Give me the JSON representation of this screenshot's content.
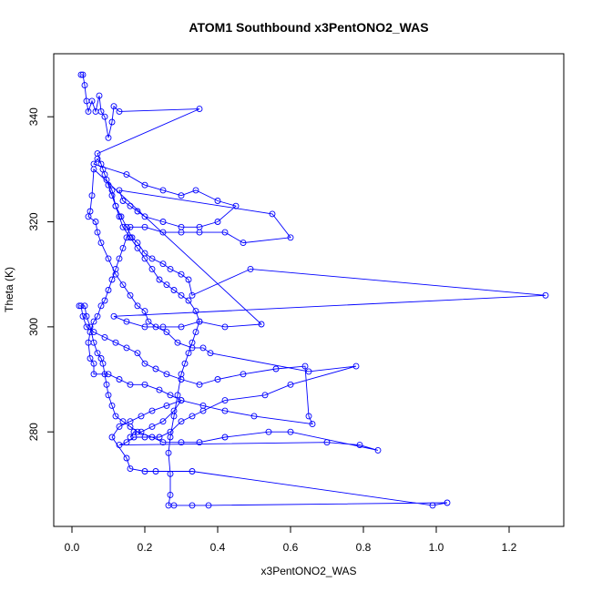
{
  "chart_data": {
    "type": "line",
    "title": "ATOM1 Southbound x3PentONO2_WAS",
    "xlabel": "x3PentONO2_WAS",
    "ylabel": "Theta (K)",
    "xlim": [
      -0.05,
      1.35
    ],
    "ylim": [
      262,
      352
    ],
    "x_ticks": [
      0.0,
      0.2,
      0.4,
      0.6,
      0.8,
      1.0,
      1.2
    ],
    "x_tick_labels": [
      "0.0",
      "0.2",
      "0.4",
      "0.6",
      "0.8",
      "1.0",
      "1.2"
    ],
    "y_ticks": [
      280,
      300,
      320,
      340
    ],
    "y_tick_labels": [
      "280",
      "300",
      "320",
      "340"
    ],
    "grid": false,
    "legend": "none",
    "marker": "open-circle",
    "series_color": "#0000ff",
    "series": [
      {
        "points": [
          [
            0.025,
            348
          ],
          [
            0.03,
            348
          ],
          [
            0.035,
            346
          ],
          [
            0.04,
            343
          ],
          [
            0.045,
            341
          ],
          [
            0.055,
            343
          ],
          [
            0.065,
            341
          ],
          [
            0.075,
            344
          ],
          [
            0.08,
            341
          ],
          [
            0.09,
            340
          ],
          [
            0.1,
            336
          ],
          [
            0.11,
            339
          ],
          [
            0.115,
            342
          ],
          [
            0.13,
            341
          ],
          [
            0.35,
            341.5
          ],
          [
            0.07,
            333
          ],
          [
            0.085,
            330
          ],
          [
            0.095,
            328
          ],
          [
            0.11,
            326
          ],
          [
            0.12,
            323
          ],
          [
            0.135,
            321
          ],
          [
            0.15,
            319
          ],
          [
            0.165,
            317
          ],
          [
            0.18,
            316
          ],
          [
            0.2,
            314
          ],
          [
            0.22,
            313
          ],
          [
            0.25,
            312
          ],
          [
            0.27,
            311
          ],
          [
            0.3,
            310
          ],
          [
            0.32,
            309
          ],
          [
            0.33,
            306
          ],
          [
            0.49,
            311
          ],
          [
            1.3,
            306
          ],
          [
            0.115,
            302
          ],
          [
            0.15,
            301
          ],
          [
            0.2,
            300
          ],
          [
            0.25,
            300
          ],
          [
            0.3,
            300
          ],
          [
            0.35,
            301
          ],
          [
            0.42,
            300
          ],
          [
            0.52,
            300.5
          ],
          [
            0.06,
            330
          ],
          [
            0.055,
            325
          ],
          [
            0.05,
            322
          ],
          [
            0.045,
            321
          ],
          [
            0.065,
            320
          ],
          [
            0.07,
            318
          ],
          [
            0.08,
            316
          ],
          [
            0.1,
            313
          ],
          [
            0.12,
            310
          ],
          [
            0.14,
            308
          ],
          [
            0.16,
            306
          ],
          [
            0.18,
            304
          ],
          [
            0.2,
            303
          ],
          [
            0.21,
            301
          ],
          [
            0.23,
            300
          ],
          [
            0.26,
            299
          ],
          [
            0.29,
            297
          ],
          [
            0.33,
            296
          ],
          [
            0.36,
            296
          ],
          [
            0.38,
            295
          ],
          [
            0.65,
            291.5
          ],
          [
            0.78,
            292.5
          ],
          [
            0.6,
            289
          ],
          [
            0.53,
            287
          ],
          [
            0.42,
            286
          ],
          [
            0.36,
            284
          ],
          [
            0.33,
            283
          ],
          [
            0.3,
            282
          ],
          [
            0.27,
            280
          ],
          [
            0.24,
            279
          ],
          [
            0.2,
            279
          ],
          [
            0.17,
            279
          ],
          [
            0.15,
            278
          ],
          [
            0.13,
            277.5
          ],
          [
            0.7,
            278
          ],
          [
            0.79,
            277.5
          ],
          [
            0.84,
            276.5
          ],
          [
            0.6,
            280
          ],
          [
            0.54,
            280
          ],
          [
            0.42,
            279
          ],
          [
            0.35,
            278
          ],
          [
            0.3,
            278
          ],
          [
            0.25,
            278
          ],
          [
            0.22,
            279
          ],
          [
            0.18,
            280
          ],
          [
            0.16,
            281
          ],
          [
            0.14,
            282
          ],
          [
            0.12,
            283
          ],
          [
            0.11,
            285
          ],
          [
            0.1,
            287
          ],
          [
            0.095,
            289
          ],
          [
            0.09,
            291
          ],
          [
            0.085,
            293
          ],
          [
            0.08,
            294
          ],
          [
            0.07,
            295
          ],
          [
            0.06,
            297
          ],
          [
            0.05,
            300
          ],
          [
            0.04,
            302
          ],
          [
            0.035,
            304
          ],
          [
            0.02,
            304
          ],
          [
            0.025,
            304
          ],
          [
            0.03,
            302
          ],
          [
            0.04,
            300
          ],
          [
            0.06,
            299
          ],
          [
            0.09,
            298
          ],
          [
            0.12,
            297
          ],
          [
            0.15,
            296
          ],
          [
            0.18,
            295
          ],
          [
            0.2,
            293
          ],
          [
            0.23,
            292
          ],
          [
            0.26,
            291
          ],
          [
            0.3,
            290
          ],
          [
            0.35,
            289
          ],
          [
            0.4,
            290
          ],
          [
            0.47,
            291
          ],
          [
            0.56,
            292
          ],
          [
            0.64,
            292.5
          ],
          [
            0.65,
            283
          ],
          [
            0.66,
            281.5
          ],
          [
            0.5,
            283
          ],
          [
            0.42,
            284
          ],
          [
            0.36,
            285
          ],
          [
            0.3,
            286
          ],
          [
            0.26,
            285
          ],
          [
            0.22,
            284
          ],
          [
            0.19,
            283
          ],
          [
            0.16,
            282
          ],
          [
            0.13,
            281
          ],
          [
            0.11,
            279
          ],
          [
            0.15,
            275
          ],
          [
            0.16,
            273
          ],
          [
            0.2,
            272.5
          ],
          [
            0.23,
            272.5
          ],
          [
            0.33,
            272.5
          ],
          [
            0.99,
            266
          ],
          [
            1.03,
            266.5
          ],
          [
            0.375,
            266
          ],
          [
            0.33,
            266
          ],
          [
            0.28,
            266
          ],
          [
            0.265,
            266
          ],
          [
            0.27,
            268
          ],
          [
            0.27,
            272
          ],
          [
            0.265,
            276
          ],
          [
            0.27,
            279
          ],
          [
            0.28,
            283
          ],
          [
            0.29,
            287
          ],
          [
            0.3,
            291
          ],
          [
            0.31,
            293
          ],
          [
            0.32,
            295
          ],
          [
            0.33,
            297
          ],
          [
            0.34,
            299
          ],
          [
            0.35,
            301
          ],
          [
            0.34,
            303
          ],
          [
            0.32,
            305
          ],
          [
            0.3,
            306
          ],
          [
            0.28,
            307
          ],
          [
            0.26,
            308
          ],
          [
            0.24,
            309
          ],
          [
            0.22,
            311
          ],
          [
            0.2,
            313
          ],
          [
            0.18,
            315
          ],
          [
            0.16,
            317
          ],
          [
            0.14,
            319
          ],
          [
            0.13,
            321
          ],
          [
            0.12,
            323
          ],
          [
            0.11,
            325
          ],
          [
            0.1,
            327
          ],
          [
            0.09,
            329
          ],
          [
            0.08,
            331
          ],
          [
            0.07,
            332
          ],
          [
            0.06,
            331
          ],
          [
            0.15,
            329
          ],
          [
            0.2,
            327
          ],
          [
            0.25,
            326
          ],
          [
            0.3,
            325
          ],
          [
            0.34,
            326
          ],
          [
            0.4,
            324
          ],
          [
            0.45,
            323
          ],
          [
            0.4,
            320
          ],
          [
            0.35,
            319
          ],
          [
            0.3,
            319
          ],
          [
            0.25,
            320
          ],
          [
            0.2,
            321
          ],
          [
            0.18,
            322
          ],
          [
            0.16,
            323
          ],
          [
            0.14,
            324
          ],
          [
            0.13,
            326
          ],
          [
            0.55,
            321.5
          ],
          [
            0.6,
            317
          ],
          [
            0.47,
            316
          ],
          [
            0.42,
            318
          ],
          [
            0.35,
            318
          ],
          [
            0.3,
            318
          ],
          [
            0.25,
            318
          ],
          [
            0.2,
            319
          ],
          [
            0.16,
            319
          ],
          [
            0.15,
            317
          ],
          [
            0.14,
            315
          ],
          [
            0.13,
            313
          ],
          [
            0.12,
            311
          ],
          [
            0.11,
            309
          ],
          [
            0.1,
            307
          ],
          [
            0.09,
            305
          ],
          [
            0.08,
            304
          ],
          [
            0.07,
            302
          ],
          [
            0.06,
            301
          ],
          [
            0.05,
            299
          ],
          [
            0.045,
            297
          ],
          [
            0.05,
            294
          ],
          [
            0.06,
            293
          ],
          [
            0.06,
            291
          ],
          [
            0.1,
            291
          ],
          [
            0.13,
            290
          ],
          [
            0.16,
            289
          ],
          [
            0.2,
            289
          ],
          [
            0.24,
            288
          ],
          [
            0.27,
            287
          ],
          [
            0.3,
            286
          ],
          [
            0.28,
            284
          ],
          [
            0.25,
            282
          ],
          [
            0.22,
            281
          ],
          [
            0.19,
            280
          ],
          [
            0.17,
            280
          ],
          [
            0.16,
            279
          ]
        ]
      }
    ]
  }
}
